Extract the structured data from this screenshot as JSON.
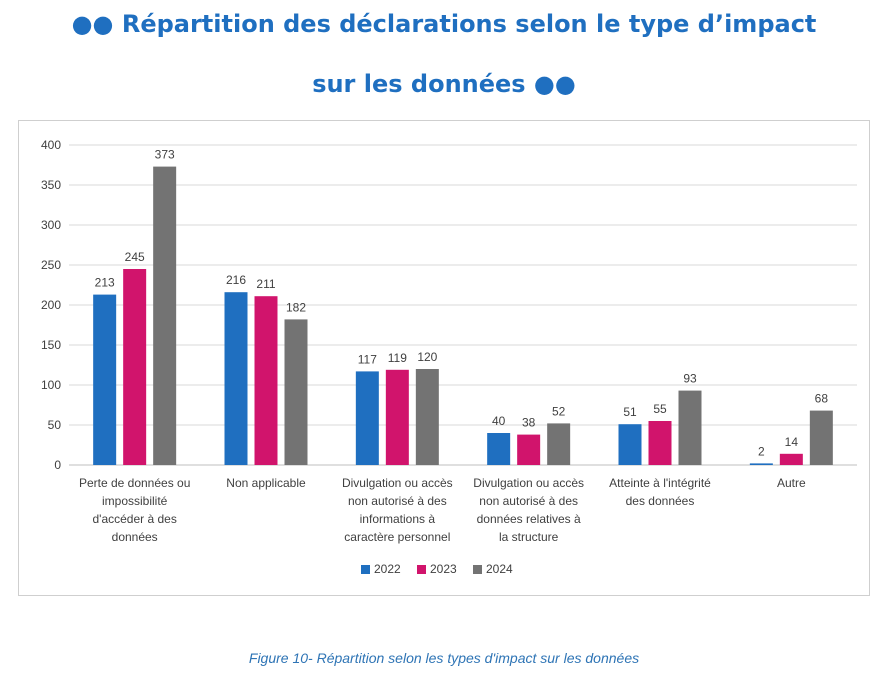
{
  "title": {
    "line1": "●● Répartition des déclarations selon le type d’impact",
    "line2": "sur les données ●●"
  },
  "caption": "Figure 10- Répartition selon les types d'impact sur les données",
  "chart_data": {
    "type": "bar",
    "ylim": [
      0,
      400
    ],
    "yticks": [
      0,
      50,
      100,
      150,
      200,
      250,
      300,
      350,
      400
    ],
    "grid": true,
    "legend_position": "bottom",
    "categories": [
      [
        "Perte de données ou",
        "impossibilité",
        "d'accéder à des",
        "données"
      ],
      [
        "Non applicable"
      ],
      [
        "Divulgation ou accès",
        "non autorisé à des",
        "informations à",
        "caractère personnel"
      ],
      [
        "Divulgation ou accès",
        "non autorisé à des",
        "données relatives à",
        "la structure"
      ],
      [
        "Atteinte à l'intégrité",
        "des données"
      ],
      [
        "Autre"
      ]
    ],
    "series": [
      {
        "name": "2022",
        "color": "#1f6fc0",
        "values": [
          213,
          216,
          117,
          40,
          51,
          2
        ]
      },
      {
        "name": "2023",
        "color": "#d1146c",
        "values": [
          245,
          211,
          119,
          38,
          55,
          14
        ]
      },
      {
        "name": "2024",
        "color": "#737373",
        "values": [
          373,
          182,
          120,
          52,
          93,
          68
        ]
      }
    ]
  }
}
